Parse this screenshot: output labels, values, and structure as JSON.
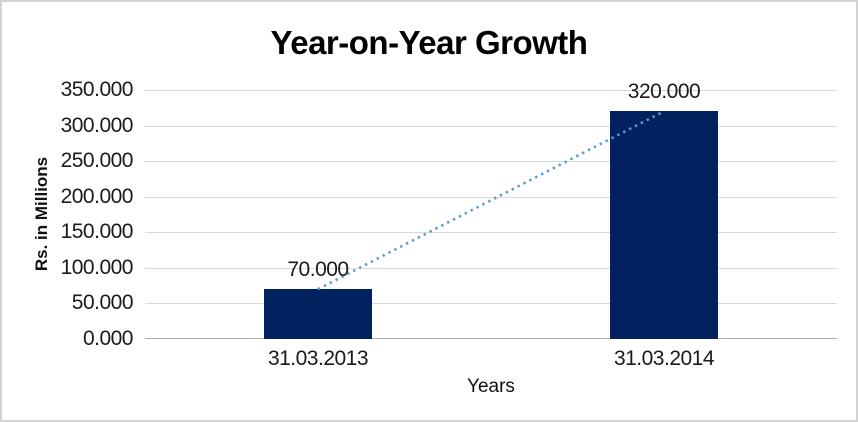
{
  "window": {
    "background_color": "#FFFFFF",
    "border_color": "#D2D2D2"
  },
  "chart_data": {
    "type": "bar",
    "title": "Year-on-Year Growth",
    "xlabel": "Years",
    "ylabel": "Rs. in Millions",
    "categories": [
      "31.03.2013",
      "31.03.2014"
    ],
    "series": [
      {
        "name": "growth-bars",
        "type": "bar",
        "values": [
          70,
          320
        ],
        "data_labels": [
          "70.000",
          "320.000"
        ],
        "color": "#02215F"
      },
      {
        "name": "trend-line",
        "type": "dotted-line",
        "values": [
          70,
          320
        ],
        "color": "#5B9BD5"
      }
    ],
    "ylim": [
      0,
      350
    ],
    "ytick_step": 50,
    "ytick_labels": [
      "0.000",
      "50.000",
      "100.000",
      "150.000",
      "200.000",
      "250.000",
      "300.000",
      "350.000"
    ],
    "grid": "horizontal",
    "gridline_color": "#D9D9D9",
    "axisline_color": "#B0B0B0",
    "legend": "none",
    "text_color": "#1A1A1A"
  }
}
